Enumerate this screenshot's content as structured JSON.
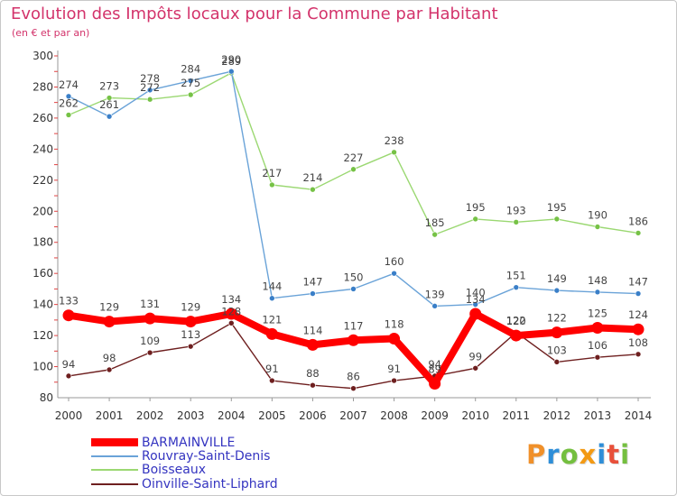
{
  "chart_data": {
    "type": "line",
    "title": "Evolution des Impôts locaux pour la Commune par Habitant",
    "subtitle": "(en € et par an)",
    "xlabel": "",
    "ylabel": "",
    "x": [
      2000,
      2001,
      2002,
      2003,
      2004,
      2005,
      2006,
      2007,
      2008,
      2009,
      2010,
      2011,
      2012,
      2013,
      2014
    ],
    "ylim": [
      80,
      300
    ],
    "yticks": [
      80,
      100,
      120,
      140,
      160,
      180,
      200,
      220,
      240,
      260,
      280,
      300
    ],
    "grid": false,
    "legend_position": "bottom-left",
    "legend_text_color": "#3434c0",
    "series": [
      {
        "name": "BARMAINVILLE",
        "color": "#ff0000",
        "marker_color": "#ff0000",
        "thick": true,
        "values": [
          133,
          129,
          131,
          129,
          134,
          121,
          114,
          117,
          118,
          89,
          134,
          120,
          122,
          125,
          124
        ]
      },
      {
        "name": "Rouvray-Saint-Denis",
        "color": "#6aa3d8",
        "marker_color": "#3a7fc8",
        "thick": false,
        "values": [
          274,
          261,
          278,
          284,
          290,
          144,
          147,
          150,
          160,
          139,
          140,
          151,
          149,
          148,
          147
        ]
      },
      {
        "name": "Boisseaux",
        "color": "#9bd872",
        "marker_color": "#76c246",
        "thick": false,
        "values": [
          262,
          273,
          272,
          275,
          289,
          217,
          214,
          227,
          238,
          185,
          195,
          193,
          195,
          190,
          186
        ]
      },
      {
        "name": "Oinville-Saint-Liphard",
        "color": "#6e1f1f",
        "marker_color": "#6e1f1f",
        "thick": false,
        "values": [
          94,
          98,
          109,
          113,
          128,
          91,
          88,
          86,
          91,
          94,
          99,
          122,
          103,
          106,
          108
        ]
      }
    ]
  },
  "logo": {
    "text": "Proxiti",
    "colors": [
      "#f0902a",
      "#2e8ed8",
      "#74bf3f",
      "#f39a14",
      "#2e8ed8",
      "#e8503a",
      "#74bf3f"
    ]
  }
}
